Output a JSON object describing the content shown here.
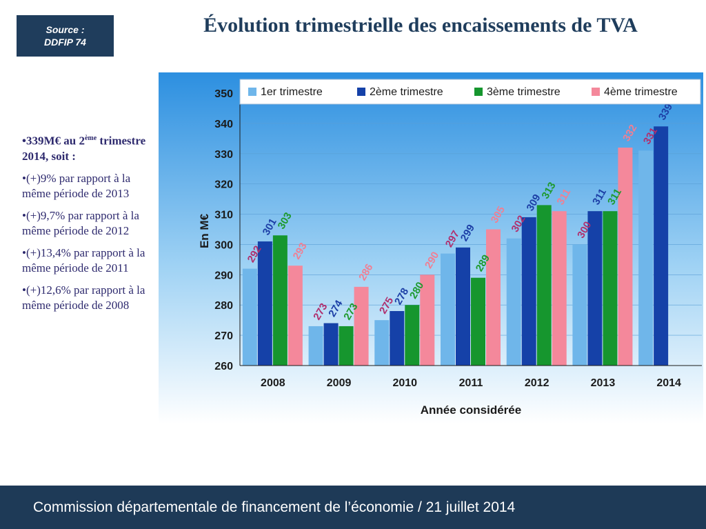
{
  "source": {
    "line1": "Source :",
    "line2": "DDFIP 74"
  },
  "title": "Évolution trimestrielle des encaissements de TVA",
  "commentary": {
    "lead_pre": "•339M€ au 2",
    "lead_sup": "ème",
    "lead_post": " trimestre 2014, soit :",
    "items": [
      "•(+)9% par rapport à la même période de 2013",
      "•(+)9,7% par rapport à la même période de 2012",
      "•(+)13,4% par rapport à la même période de 2011",
      "•(+)12,6% par rapport à la même période de 2008"
    ]
  },
  "footer": "Commission départementale de financement de l’économie / 21 juillet 2014",
  "chart_data": {
    "type": "bar",
    "title": "Évolution trimestrielle des encaissements de TVA",
    "xlabel": "Année considérée",
    "ylabel": "En M€",
    "ylim": [
      260,
      350
    ],
    "yticks": [
      260,
      270,
      280,
      290,
      300,
      310,
      320,
      330,
      340,
      350
    ],
    "categories": [
      "2008",
      "2009",
      "2010",
      "2011",
      "2012",
      "2013",
      "2014"
    ],
    "legend_position": "top",
    "series": [
      {
        "name": "1er trimestre",
        "color": "#6fb6ea",
        "label_color": "#b0306e",
        "values": [
          292,
          273,
          275,
          297,
          302,
          300,
          331
        ]
      },
      {
        "name": "2ème trimestre",
        "color": "#1541a8",
        "label_color": "#1d3fa6",
        "values": [
          301,
          274,
          278,
          299,
          309,
          311,
          339
        ]
      },
      {
        "name": "3ème trimestre",
        "color": "#16962e",
        "label_color": "#1e9a2e",
        "values": [
          303,
          273,
          280,
          289,
          313,
          311,
          null
        ]
      },
      {
        "name": "4ème trimestre",
        "color": "#f4889b",
        "label_color": "#f07f93",
        "values": [
          293,
          286,
          290,
          305,
          311,
          332,
          null
        ]
      }
    ]
  }
}
